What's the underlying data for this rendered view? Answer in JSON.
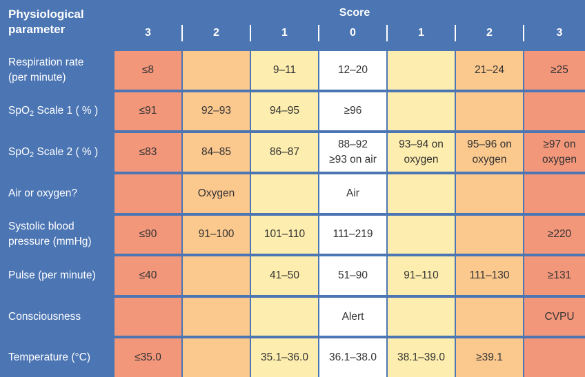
{
  "header": {
    "param_line1": "Physiological",
    "param_line2": "parameter",
    "score_title": "Score",
    "score_columns": [
      "3",
      "2",
      "1",
      "0",
      "1",
      "2",
      "3"
    ]
  },
  "rows": [
    {
      "label_line1": "Respiration rate",
      "label_line2": "(per minute)",
      "cells": [
        {
          "lines": [
            "≤8"
          ],
          "score": 3
        },
        {
          "lines": [
            ""
          ],
          "score": 2
        },
        {
          "lines": [
            "9–11"
          ],
          "score": 1
        },
        {
          "lines": [
            "12–20"
          ],
          "score": 0
        },
        {
          "lines": [
            ""
          ],
          "score": 1
        },
        {
          "lines": [
            "21–24"
          ],
          "score": 2
        },
        {
          "lines": [
            "≥25"
          ],
          "score": 3
        }
      ]
    },
    {
      "label_pre": "SpO",
      "label_sub": "2",
      "label_post": " Scale 1 ( % )",
      "cells": [
        {
          "lines": [
            "≤91"
          ],
          "score": 3
        },
        {
          "lines": [
            "92–93"
          ],
          "score": 2
        },
        {
          "lines": [
            "94–95"
          ],
          "score": 1
        },
        {
          "lines": [
            "≥96"
          ],
          "score": 0
        },
        {
          "lines": [
            ""
          ],
          "score": 1
        },
        {
          "lines": [
            ""
          ],
          "score": 2
        },
        {
          "lines": [
            ""
          ],
          "score": 3
        }
      ]
    },
    {
      "label_pre": "SpO",
      "label_sub": "2",
      "label_post": " Scale 2 ( % )",
      "cells": [
        {
          "lines": [
            "≤83"
          ],
          "score": 3
        },
        {
          "lines": [
            "84–85"
          ],
          "score": 2
        },
        {
          "lines": [
            "86–87"
          ],
          "score": 1
        },
        {
          "lines": [
            "88–92",
            "≥93 on air"
          ],
          "score": 0
        },
        {
          "lines": [
            "93–94 on",
            "oxygen"
          ],
          "score": 1
        },
        {
          "lines": [
            "95–96 on",
            "oxygen"
          ],
          "score": 2
        },
        {
          "lines": [
            "≥97 on",
            "oxygen"
          ],
          "score": 3
        }
      ]
    },
    {
      "label_line1": "Air or oxygen?",
      "cells": [
        {
          "lines": [
            ""
          ],
          "score": 3
        },
        {
          "lines": [
            "Oxygen"
          ],
          "score": 2
        },
        {
          "lines": [
            ""
          ],
          "score": 1
        },
        {
          "lines": [
            "Air"
          ],
          "score": 0
        },
        {
          "lines": [
            ""
          ],
          "score": 1
        },
        {
          "lines": [
            ""
          ],
          "score": 2
        },
        {
          "lines": [
            ""
          ],
          "score": 3
        }
      ]
    },
    {
      "label_line1": "Systolic blood",
      "label_line2": "pressure (mmHg)",
      "cells": [
        {
          "lines": [
            "≤90"
          ],
          "score": 3
        },
        {
          "lines": [
            "91–100"
          ],
          "score": 2
        },
        {
          "lines": [
            "101–110"
          ],
          "score": 1
        },
        {
          "lines": [
            "111–219"
          ],
          "score": 0
        },
        {
          "lines": [
            ""
          ],
          "score": 1
        },
        {
          "lines": [
            ""
          ],
          "score": 2
        },
        {
          "lines": [
            "≥220"
          ],
          "score": 3
        }
      ]
    },
    {
      "label_line1": "Pulse (per minute)",
      "cells": [
        {
          "lines": [
            "≤40"
          ],
          "score": 3
        },
        {
          "lines": [
            ""
          ],
          "score": 2
        },
        {
          "lines": [
            "41–50"
          ],
          "score": 1
        },
        {
          "lines": [
            "51–90"
          ],
          "score": 0
        },
        {
          "lines": [
            "91–110"
          ],
          "score": 1
        },
        {
          "lines": [
            "111–130"
          ],
          "score": 2
        },
        {
          "lines": [
            "≥131"
          ],
          "score": 3
        }
      ]
    },
    {
      "label_line1": "Consciousness",
      "cells": [
        {
          "lines": [
            ""
          ],
          "score": 3
        },
        {
          "lines": [
            ""
          ],
          "score": 2
        },
        {
          "lines": [
            ""
          ],
          "score": 1
        },
        {
          "lines": [
            "Alert"
          ],
          "score": 0
        },
        {
          "lines": [
            ""
          ],
          "score": 1
        },
        {
          "lines": [
            ""
          ],
          "score": 2
        },
        {
          "lines": [
            "CVPU"
          ],
          "score": 3
        }
      ]
    },
    {
      "label_line1": "Temperature (°C)",
      "cells": [
        {
          "lines": [
            "≤35.0"
          ],
          "score": 3
        },
        {
          "lines": [
            ""
          ],
          "score": 2
        },
        {
          "lines": [
            "35.1–36.0"
          ],
          "score": 1
        },
        {
          "lines": [
            "36.1–38.0"
          ],
          "score": 0
        },
        {
          "lines": [
            "38.1–39.0"
          ],
          "score": 1
        },
        {
          "lines": [
            "≥39.1"
          ],
          "score": 2
        },
        {
          "lines": [
            ""
          ],
          "score": 3
        }
      ]
    }
  ],
  "colors": {
    "header_blue": "#4b75b3",
    "score_3": "#f3977b",
    "score_2": "#fbc88e",
    "score_1": "#fdedae",
    "score_0": "#ffffff"
  }
}
